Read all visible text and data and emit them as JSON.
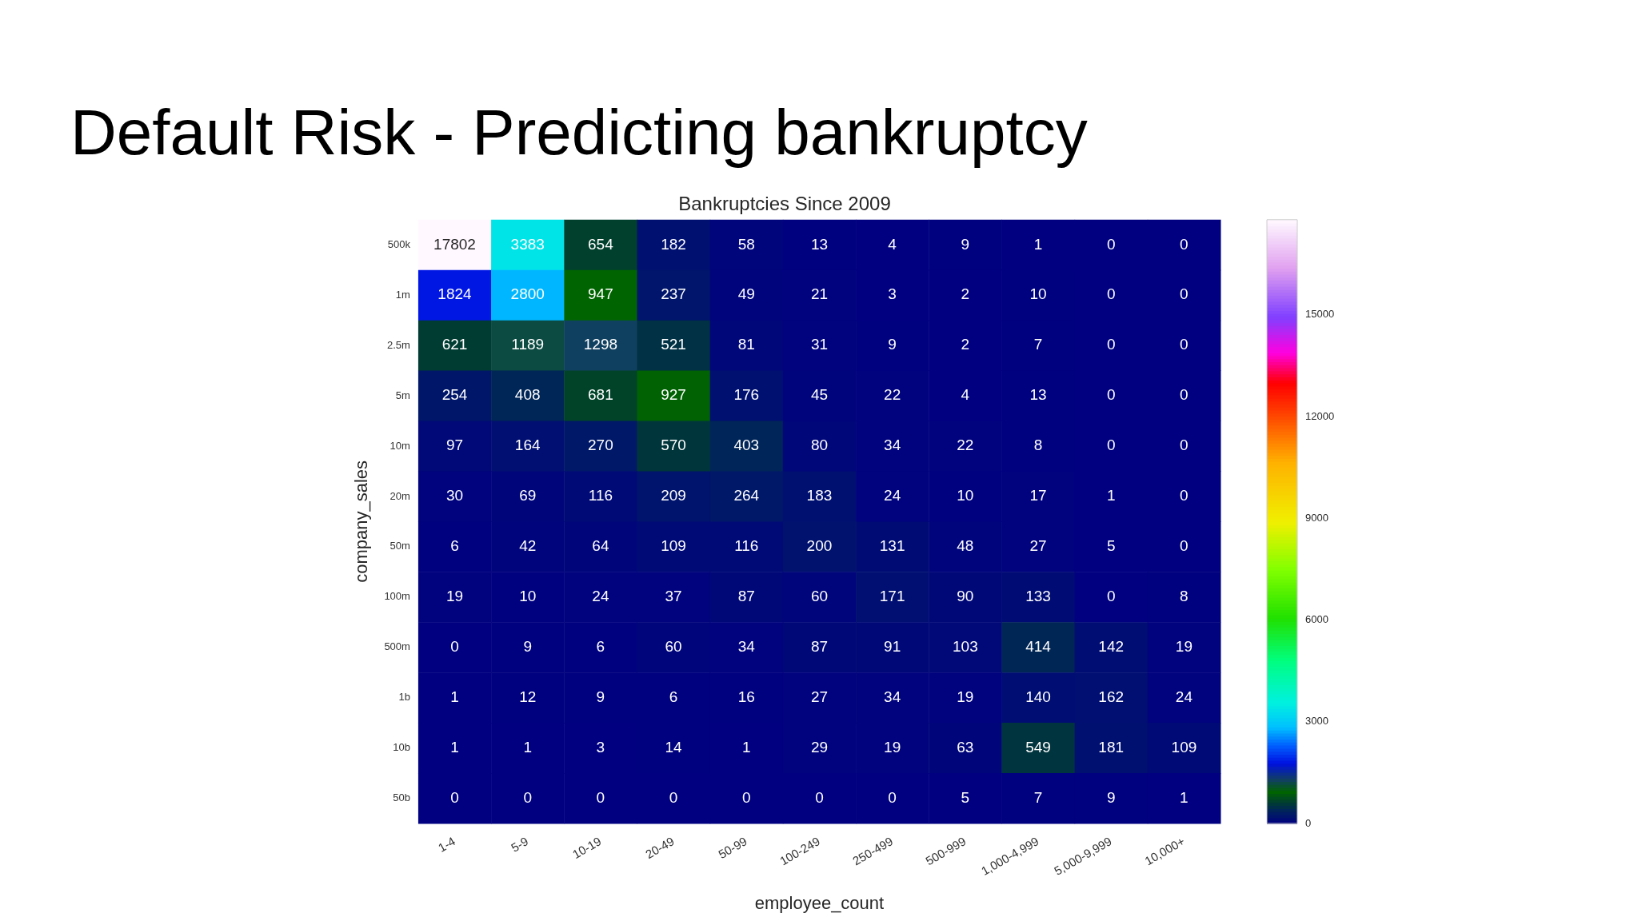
{
  "chart_data": {
    "type": "heatmap",
    "title": "Default Risk - Predicting bankruptcy",
    "subtitle": "Bankruptcies Since 2009",
    "xlabel": "employee_count",
    "ylabel": "company_sales",
    "categories": [
      "1-4",
      "5-9",
      "10-19",
      "20-49",
      "50-99",
      "100-249",
      "250-499",
      "500-999",
      "1,000-4,999",
      "5,000-9,999",
      "10,000+"
    ],
    "y_categories": [
      "500k",
      "1m",
      "2.5m",
      "5m",
      "10m",
      "20m",
      "50m",
      "100m",
      "500m",
      "1b",
      "10b",
      "50b"
    ],
    "cells": [
      [
        17802,
        3383,
        654,
        182,
        58,
        13,
        4,
        9,
        1,
        0,
        0
      ],
      [
        1824,
        2800,
        947,
        237,
        49,
        21,
        3,
        2,
        10,
        0,
        0
      ],
      [
        621,
        1189,
        1298,
        521,
        81,
        31,
        9,
        2,
        7,
        0,
        0
      ],
      [
        254,
        408,
        681,
        927,
        176,
        45,
        22,
        4,
        13,
        0,
        0
      ],
      [
        97,
        164,
        270,
        570,
        403,
        80,
        34,
        22,
        8,
        0,
        0
      ],
      [
        30,
        69,
        116,
        209,
        264,
        183,
        24,
        10,
        17,
        1,
        0
      ],
      [
        6,
        42,
        64,
        109,
        116,
        200,
        131,
        48,
        27,
        5,
        0
      ],
      [
        19,
        10,
        24,
        37,
        87,
        60,
        171,
        90,
        133,
        0,
        8
      ],
      [
        0,
        9,
        6,
        60,
        34,
        87,
        91,
        103,
        414,
        142,
        19
      ],
      [
        1,
        12,
        9,
        6,
        16,
        27,
        34,
        19,
        140,
        162,
        24
      ],
      [
        1,
        1,
        3,
        14,
        1,
        29,
        19,
        63,
        549,
        181,
        109
      ],
      [
        0,
        0,
        0,
        0,
        0,
        0,
        0,
        5,
        7,
        9,
        1
      ]
    ],
    "data_labels": true,
    "clim": [
      0,
      17802
    ],
    "cticks": [
      0,
      3000,
      6000,
      9000,
      12000,
      15000
    ]
  }
}
